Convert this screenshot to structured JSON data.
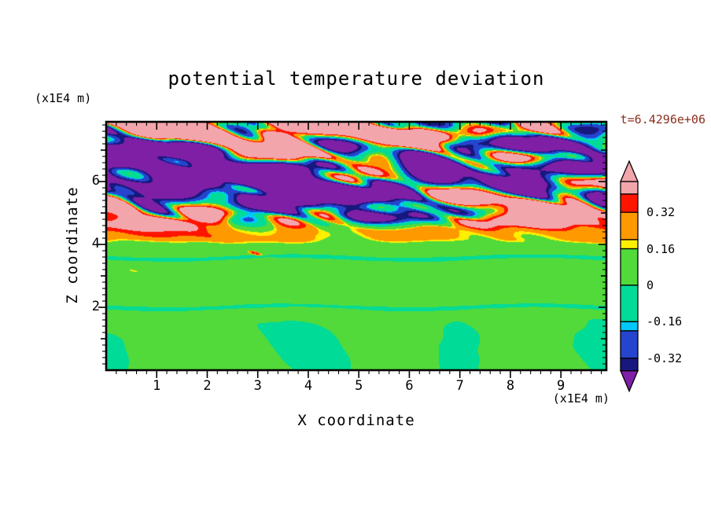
{
  "figure": {
    "title": "potential temperature deviation",
    "time_label": "t=6.4296e+06",
    "time_label_color": "#8B2E1E",
    "x_axis": {
      "label": "X coordinate",
      "units": "(x1E4 m)",
      "major_ticks": [
        1,
        2,
        3,
        4,
        5,
        6,
        7,
        8,
        9
      ],
      "minor_tick_step": 0.2,
      "range": [
        0,
        9.9
      ]
    },
    "z_axis": {
      "label": "Z coordinate",
      "units": "(x1E4 m)",
      "major_ticks": [
        2,
        4,
        6
      ],
      "minor_tick_step": 0.2,
      "range": [
        0,
        7.9
      ]
    }
  },
  "chart_data": {
    "type": "heatmap",
    "title": "potential temperature deviation",
    "xlabel": "X coordinate (x1E4 m)",
    "ylabel": "Z coordinate (x1E4 m)",
    "time_annotation": "t=6.4296e+06",
    "x_range": [
      0,
      9.9
    ],
    "z_range": [
      0,
      7.9
    ],
    "grid": false,
    "legend_position": "right-colorbar",
    "colorbar": {
      "tick_labels": [
        "0.32",
        "0.16",
        "0",
        "-0.16",
        "-0.32"
      ],
      "tick_values": [
        0.32,
        0.16,
        0,
        -0.16,
        -0.32
      ],
      "value_top": 0.455,
      "value_bottom": -0.375,
      "above_color": "#F3A5AC",
      "below_color": "#7E1FA6",
      "levels": [
        {
          "from": 0.4,
          "color": "#F3A5AC",
          "name": "pink"
        },
        {
          "from": 0.32,
          "color": "#FF1400",
          "name": "red"
        },
        {
          "from": 0.2,
          "color": "#FF9900",
          "name": "orange"
        },
        {
          "from": 0.16,
          "color": "#FFF000",
          "name": "yellow"
        },
        {
          "from": 0,
          "color": "#52DA3B",
          "name": "green"
        },
        {
          "from": -0.16,
          "color": "#00DB97",
          "name": "spring-green"
        },
        {
          "from": -0.2,
          "color": "#00C8FF",
          "name": "cyan"
        },
        {
          "from": -0.32,
          "color": "#2545CE",
          "name": "blue"
        },
        {
          "from": -0.4,
          "color": "#17177D",
          "name": "navy"
        }
      ]
    },
    "field_structure": [
      {
        "z_range": [
          0,
          2.0
        ],
        "values": "-0.12 to 0.08",
        "description": "green background with spring-green plume blobs rising from the lower boundary"
      },
      {
        "z_range": [
          2.0,
          3.9
        ],
        "values": "0 to 0.08",
        "description": "nearly uniform green layer with thin spring-green horizontal streaks near z=2 and z=3.5 and rare red/purple specks"
      },
      {
        "z_range": [
          3.9,
          4.4
        ],
        "values": "0.1 to 0.4",
        "description": "sharp inversion stripe of orange/red/yellow spanning the full width"
      },
      {
        "z_range": [
          4.4,
          7.9
        ],
        "values": "-0.45 to 0.45 (saturating the scale)",
        "description": "turbulent breaking-wave region of interleaved pink (>0.4) and purple (<-0.4) horizontally elongated eddies with red/orange/yellow and cyan/blue/navy fringes"
      }
    ]
  }
}
